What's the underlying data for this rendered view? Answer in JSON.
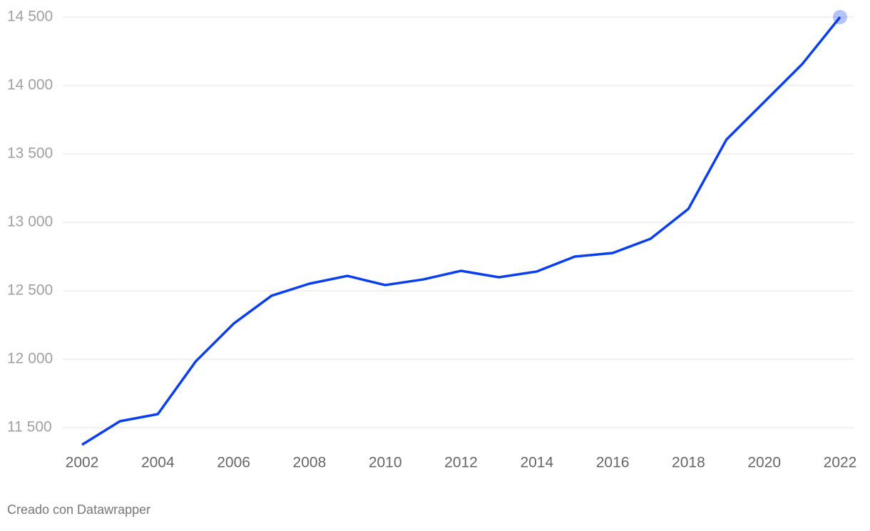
{
  "chart_data": {
    "type": "line",
    "x": [
      2002,
      2003,
      2004,
      2005,
      2006,
      2007,
      2008,
      2009,
      2010,
      2011,
      2012,
      2013,
      2014,
      2015,
      2016,
      2017,
      2018,
      2019,
      2020,
      2021,
      2022
    ],
    "series": [
      {
        "color": "#0a3ff0",
        "values": [
          11375,
          11547,
          11599,
          11984,
          12260,
          12464,
          12552,
          12609,
          12542,
          12583,
          12646,
          12599,
          12641,
          12750,
          12776,
          12880,
          13099,
          13604,
          13880,
          14156,
          14500
        ]
      }
    ],
    "xlim": [
      2002,
      2022
    ],
    "xticks": [
      2002,
      2004,
      2006,
      2008,
      2010,
      2012,
      2014,
      2016,
      2018,
      2020,
      2022
    ],
    "ylim": [
      11350,
      14500
    ],
    "yticks": [
      {
        "value": 11500,
        "label": "11 500"
      },
      {
        "value": 12000,
        "label": "12 000"
      },
      {
        "value": 12500,
        "label": "12 500"
      },
      {
        "value": 13000,
        "label": "13 000"
      },
      {
        "value": 13500,
        "label": "13 500"
      },
      {
        "value": 14000,
        "label": "14 000"
      },
      {
        "value": 14500,
        "label": "14 500"
      }
    ],
    "grid": true,
    "footer": "Creado con Datawrapper"
  }
}
